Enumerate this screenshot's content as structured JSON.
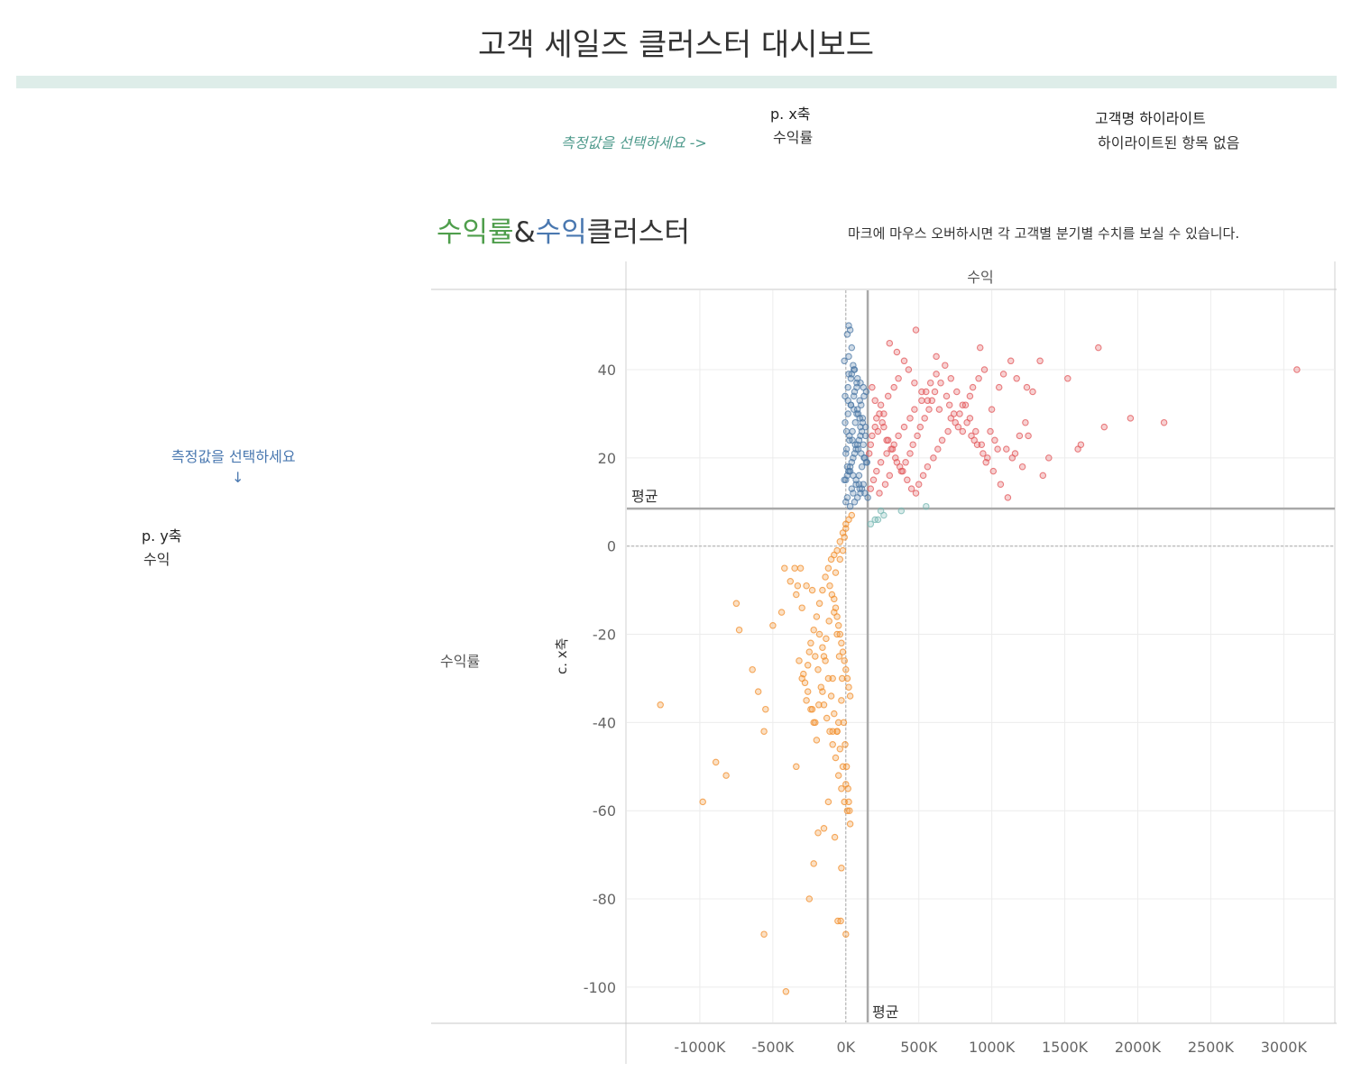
{
  "dashboard": {
    "title": "고객 세일즈 클러스터 대시보드"
  },
  "params": {
    "x_prompt": "측정값을 선택하세요 ->",
    "x_label": "p. x축",
    "x_value": "수익률",
    "highlight_label": "고객명 하이라이트",
    "highlight_value": "하이라이트된 항목 없음",
    "y_prompt": "측정값을 선택하세요",
    "y_arrow": "↓",
    "y_label": "p. y축",
    "y_value": "수익"
  },
  "sheet": {
    "title_part1": "수익률",
    "title_part2": "&",
    "title_part3": "수익",
    "title_part4": "클러스터",
    "hover_note": "마크에 마우스 오버하시면 각 고객별 분기별 수치를 보실 수 있습니다.",
    "column_header": "수익",
    "row_header": "수익률",
    "y_axis_title": "c. x축"
  },
  "chart_data": {
    "type": "scatter",
    "xlabel": "",
    "ylabel": "c. x축",
    "xlim": [
      -1500000,
      3350000
    ],
    "ylim": [
      -108,
      58
    ],
    "xticks": [
      -1000000,
      -500000,
      0,
      500000,
      1000000,
      1500000,
      2000000,
      2500000,
      3000000
    ],
    "xtick_labels": [
      "-1000K",
      "-500K",
      "0K",
      "500K",
      "1000K",
      "1500K",
      "2000K",
      "2500K",
      "3000K"
    ],
    "yticks": [
      40,
      20,
      0,
      -20,
      -40,
      -60,
      -80,
      -100
    ],
    "ytick_labels": [
      "40",
      "20",
      "0",
      "-20",
      "-40",
      "-60",
      "-80",
      "-100"
    ],
    "grid": true,
    "reference_lines": [
      {
        "axis": "y",
        "value": 8.5,
        "label": "평균"
      },
      {
        "axis": "x",
        "value": 150000,
        "label": "평균"
      }
    ],
    "colors": {
      "red": "#e15759",
      "blue": "#4e79a7",
      "orange": "#f28e2b",
      "teal": "#76b7b2"
    },
    "series": [
      {
        "color": "red",
        "x": [
          480000,
          300000,
          350000,
          620000,
          920000,
          1730000,
          3090000,
          1520000,
          1080000,
          1240000,
          2180000,
          1950000,
          1770000,
          1590000,
          1390000,
          1350000,
          1210000,
          1160000,
          1040000,
          960000,
          880000,
          800000,
          720000,
          640000,
          560000,
          520000,
          470000,
          430000,
          400000,
          360000,
          330000,
          290000,
          260000,
          240000,
          210000,
          200000,
          180000,
          170000,
          160000,
          220000,
          250000,
          280000,
          310000,
          340000,
          370000,
          390000,
          410000,
          440000,
          460000,
          490000,
          510000,
          540000,
          570000,
          590000,
          610000,
          650000,
          690000,
          710000,
          740000,
          770000,
          830000,
          860000,
          900000,
          940000,
          990000,
          1020000,
          1100000,
          1140000,
          1190000,
          1230000,
          1280000,
          1330000,
          180000,
          200000,
          230000,
          260000,
          290000,
          320000,
          350000,
          380000,
          420000,
          450000,
          480000,
          500000,
          530000,
          560000,
          600000,
          630000,
          660000,
          700000,
          750000,
          780000,
          820000,
          850000,
          870000,
          910000,
          950000,
          1000000,
          1050000,
          1130000,
          1170000,
          1610000,
          1250000,
          230000,
          270000,
          300000,
          170000,
          190000,
          210000,
          240000,
          280000,
          330000,
          360000,
          400000,
          440000,
          470000,
          520000,
          550000,
          580000,
          620000,
          680000,
          720000,
          760000,
          800000,
          850000,
          890000,
          930000,
          970000,
          1010000,
          1060000,
          1110000
        ],
        "y": [
          49,
          46,
          44,
          43,
          45,
          45,
          40,
          38,
          39,
          36,
          28,
          29,
          27,
          22,
          20,
          16,
          18,
          21,
          22,
          19,
          24,
          26,
          29,
          31,
          33,
          35,
          37,
          40,
          42,
          38,
          36,
          34,
          30,
          32,
          29,
          27,
          25,
          23,
          21,
          26,
          28,
          24,
          22,
          20,
          18,
          17,
          19,
          21,
          23,
          25,
          27,
          29,
          31,
          33,
          35,
          37,
          34,
          32,
          30,
          27,
          28,
          25,
          23,
          21,
          26,
          24,
          22,
          20,
          25,
          28,
          35,
          42,
          36,
          33,
          30,
          27,
          24,
          22,
          19,
          17,
          15,
          13,
          12,
          14,
          16,
          18,
          20,
          22,
          24,
          26,
          28,
          30,
          32,
          34,
          36,
          38,
          40,
          31,
          36,
          42,
          38,
          23,
          25,
          12,
          14,
          16,
          13,
          15,
          17,
          19,
          21,
          23,
          25,
          27,
          29,
          31,
          33,
          35,
          37,
          39,
          41,
          38,
          35,
          32,
          29,
          26,
          23,
          20,
          17,
          14,
          11
        ]
      },
      {
        "color": "blue",
        "x": [
          20000,
          30000,
          10000,
          40000,
          -10000,
          50000,
          60000,
          20000,
          80000,
          100000,
          120000,
          140000,
          -5000,
          15000,
          35000,
          55000,
          75000,
          95000,
          115000,
          135000,
          5000,
          25000,
          45000,
          65000,
          85000,
          105000,
          125000,
          145000,
          10000,
          30000,
          50000,
          70000,
          90000,
          110000,
          130000,
          150000,
          0,
          20000,
          40000,
          60000,
          80000,
          100000,
          120000,
          140000,
          -10000,
          10000,
          30000,
          50000,
          70000,
          90000,
          110000,
          130000,
          5000,
          25000,
          45000,
          65000,
          85000,
          105000,
          125000,
          15000,
          35000,
          55000,
          75000,
          95000,
          115000,
          135000,
          0,
          20000,
          40000,
          60000,
          80000,
          100000,
          120000,
          10000,
          30000,
          50000,
          70000,
          90000,
          110000,
          -5000,
          15000,
          35000,
          55000,
          75000,
          95000,
          0,
          20000,
          40000,
          60000,
          80000,
          100000
        ],
        "y": [
          50,
          49,
          48,
          45,
          42,
          41,
          40,
          39,
          38,
          37,
          36,
          35,
          34,
          33,
          32,
          31,
          30,
          29,
          28,
          27,
          26,
          25,
          24,
          23,
          22,
          21,
          20,
          19,
          18,
          17,
          16,
          15,
          14,
          13,
          12,
          11,
          10,
          43,
          39,
          35,
          31,
          27,
          23,
          19,
          15,
          11,
          9,
          12,
          14,
          16,
          18,
          20,
          22,
          24,
          26,
          28,
          30,
          32,
          34,
          36,
          38,
          40,
          37,
          33,
          29,
          25,
          21,
          17,
          13,
          10,
          11,
          12,
          14,
          16,
          18,
          20,
          22,
          24,
          26,
          28,
          30,
          32,
          34,
          36,
          13,
          15,
          17,
          19,
          21,
          23,
          25
        ]
      },
      {
        "color": "teal",
        "x": [
          220000,
          240000,
          380000,
          550000,
          170000,
          200000,
          260000
        ],
        "y": [
          6,
          8,
          8,
          9,
          5,
          6,
          7
        ]
      },
      {
        "color": "orange",
        "x": [
          -1270000,
          -980000,
          -890000,
          -820000,
          -750000,
          -730000,
          -640000,
          -600000,
          -560000,
          -550000,
          -500000,
          -440000,
          -410000,
          -340000,
          -330000,
          -310000,
          -280000,
          -260000,
          -240000,
          -220000,
          -200000,
          -180000,
          -160000,
          -140000,
          -120000,
          -100000,
          -80000,
          -60000,
          -40000,
          -20000,
          0,
          20000,
          40000,
          -300000,
          -270000,
          -250000,
          -230000,
          -210000,
          -190000,
          -170000,
          -150000,
          -130000,
          -110000,
          -90000,
          -70000,
          -50000,
          -30000,
          -10000,
          10000,
          30000,
          -350000,
          -320000,
          -290000,
          -260000,
          -240000,
          -220000,
          -200000,
          -180000,
          -160000,
          -140000,
          -120000,
          -100000,
          -80000,
          -60000,
          -40000,
          -20000,
          0,
          20000,
          -560000,
          -420000,
          -380000,
          -340000,
          -300000,
          -250000,
          -220000,
          -190000,
          -150000,
          -120000,
          -90000,
          -60000,
          -30000,
          0,
          -80000,
          -70000,
          -60000,
          -50000,
          -40000,
          -30000,
          -20000,
          -10000,
          0,
          10000,
          20000,
          30000,
          -110000,
          -70000,
          -40000,
          -20000,
          -10000,
          0,
          -30000,
          -50000,
          -90000,
          -150000,
          -230000,
          -60000,
          -80000,
          -45000,
          -25000,
          -15000,
          -5000,
          5000,
          15000,
          25000,
          -35000,
          -55000,
          -75000,
          -95000,
          -115000,
          -135000,
          -160000,
          -185000,
          -210000,
          -270000
        ],
        "y": [
          -36,
          -58,
          -49,
          -52,
          -13,
          -19,
          -28,
          -33,
          -42,
          -37,
          -18,
          -15,
          -101,
          -50,
          -9,
          -5,
          -31,
          -27,
          -22,
          -19,
          -16,
          -13,
          -10,
          -7,
          -5,
          -3,
          -2,
          -1,
          1,
          3,
          4,
          6,
          7,
          -30,
          -35,
          -24,
          -37,
          -25,
          -28,
          -32,
          -36,
          -39,
          -42,
          -45,
          -48,
          -52,
          -55,
          -58,
          -60,
          -63,
          -5,
          -26,
          -29,
          -33,
          -37,
          -40,
          -44,
          -20,
          -23,
          -26,
          -30,
          -34,
          -38,
          -42,
          -46,
          -50,
          -54,
          -58,
          -88,
          -5,
          -8,
          -11,
          -14,
          -80,
          -72,
          -65,
          -64,
          -58,
          -42,
          -42,
          -73,
          -88,
          -12,
          -14,
          -16,
          -18,
          -20,
          -22,
          -24,
          -26,
          -28,
          -30,
          -32,
          -34,
          -9,
          -6,
          -3,
          -1,
          2,
          5,
          -35,
          -40,
          -30,
          -25,
          -10,
          -20,
          -15,
          -25,
          -30,
          -40,
          -45,
          -50,
          -55,
          -60,
          -85,
          -85,
          -66,
          -11,
          -17,
          -21,
          -33,
          -36,
          -40,
          -9
        ]
      }
    ]
  }
}
